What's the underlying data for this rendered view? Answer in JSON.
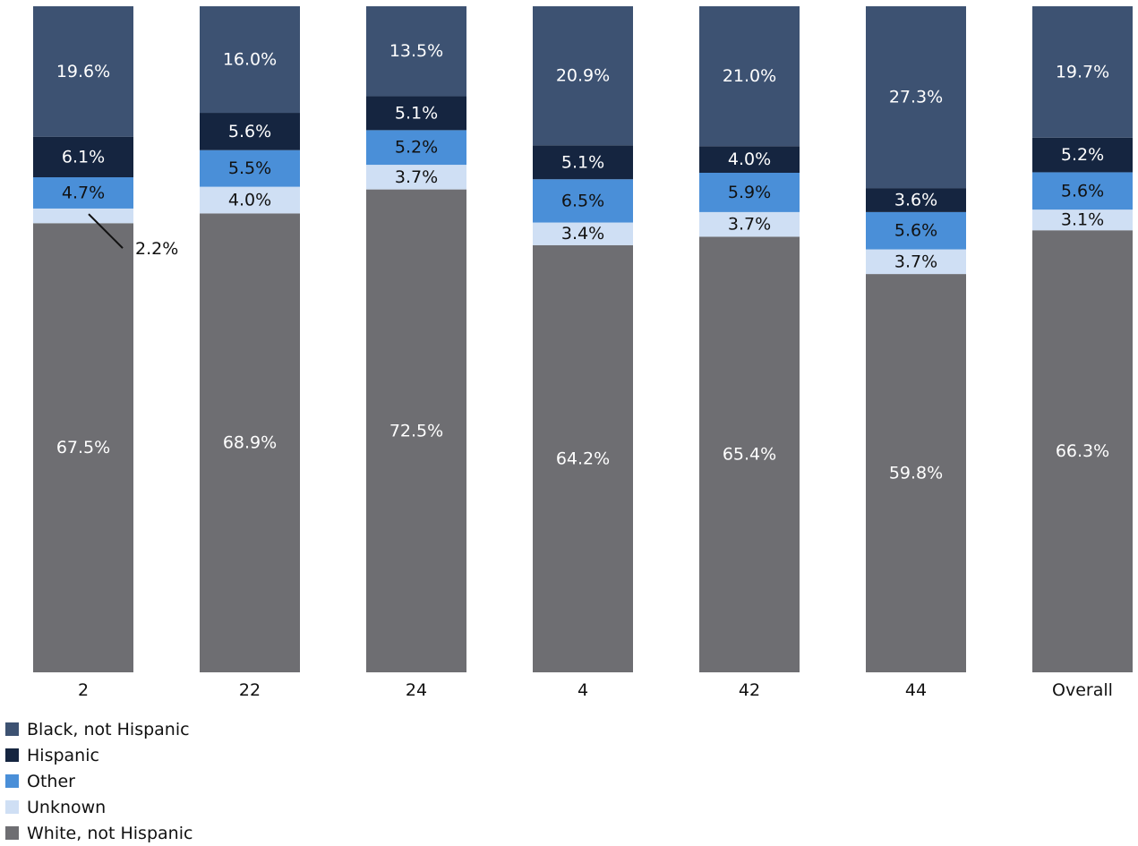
{
  "chart_data": {
    "type": "bar",
    "stacked": true,
    "normalized_percent": true,
    "categories": [
      "2",
      "22",
      "24",
      "4",
      "42",
      "44",
      "Overall"
    ],
    "series": [
      {
        "name": "White, not Hispanic",
        "color": "#6e6e72",
        "label_color": "#ffffff",
        "values": [
          67.5,
          68.9,
          72.5,
          64.2,
          65.4,
          59.8,
          66.3
        ],
        "labels": [
          "67.5%",
          "68.9%",
          "72.5%",
          "64.2%",
          "65.4%",
          "59.8%",
          "66.3%"
        ]
      },
      {
        "name": "Unknown",
        "color": "#cfdff4",
        "label_color": "#111111",
        "values": [
          2.2,
          4.0,
          3.7,
          3.4,
          3.7,
          3.7,
          3.1
        ],
        "labels": [
          "2.2%",
          "4.0%",
          "3.7%",
          "3.4%",
          "3.7%",
          "3.7%",
          "3.1%"
        ]
      },
      {
        "name": "Other",
        "color": "#4a8fd8",
        "label_color": "#111111",
        "values": [
          4.7,
          5.5,
          5.2,
          6.5,
          5.9,
          5.6,
          5.6
        ],
        "labels": [
          "4.7%",
          "5.5%",
          "5.2%",
          "6.5%",
          "5.9%",
          "5.6%",
          "5.6%"
        ]
      },
      {
        "name": "Hispanic",
        "color": "#152540",
        "label_color": "#ffffff",
        "values": [
          6.1,
          5.6,
          5.1,
          5.1,
          4.0,
          3.6,
          5.2
        ],
        "labels": [
          "6.1%",
          "5.6%",
          "5.1%",
          "5.1%",
          "4.0%",
          "3.6%",
          "5.2%"
        ]
      },
      {
        "name": "Black, not Hispanic",
        "color": "#3d5272",
        "label_color": "#ffffff",
        "values": [
          19.6,
          16.0,
          13.5,
          20.9,
          21.0,
          27.3,
          19.7
        ],
        "labels": [
          "19.6%",
          "16.0%",
          "13.5%",
          "20.9%",
          "21.0%",
          "27.3%",
          "19.7%"
        ]
      }
    ],
    "legend": {
      "placement": "bottom-left",
      "order": [
        "Black, not Hispanic",
        "Hispanic",
        "Other",
        "Unknown",
        "White, not Hispanic"
      ]
    },
    "callouts": [
      {
        "category": "2",
        "series": "Unknown",
        "label": "2.2%"
      }
    ],
    "ylim": [
      0,
      100
    ],
    "grid": false,
    "title": "",
    "xlabel": "",
    "ylabel": ""
  }
}
